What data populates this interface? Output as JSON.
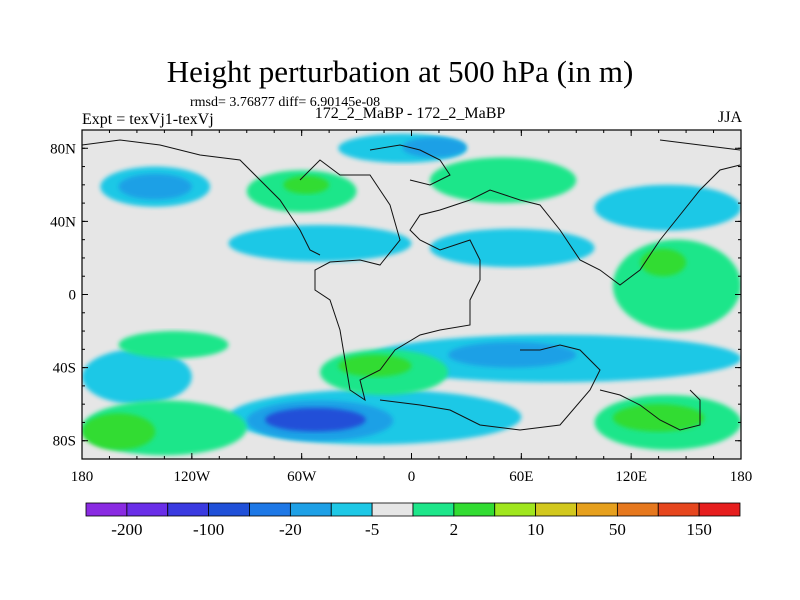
{
  "chart_data": {
    "type": "heatmap",
    "title": "Height perturbation at 500 hPa (in m)",
    "stats_text": "rmsd= 3.76877 diff= 6.90145e-08",
    "left_label": "Expt = texVj1-texVj",
    "center_label": "172_2_MaBP - 172_2_MaBP",
    "right_label": "JJA",
    "xlim": [
      -180,
      180
    ],
    "ylim": [
      -90,
      90
    ],
    "x_ticks": [
      {
        "value": -180,
        "label": "180"
      },
      {
        "value": -120,
        "label": "120W"
      },
      {
        "value": -60,
        "label": "60W"
      },
      {
        "value": 0,
        "label": "0"
      },
      {
        "value": 60,
        "label": "60E"
      },
      {
        "value": 120,
        "label": "120E"
      },
      {
        "value": 180,
        "label": "180"
      }
    ],
    "y_ticks": [
      {
        "value": 80,
        "label": "80N"
      },
      {
        "value": 40,
        "label": "40N"
      },
      {
        "value": 0,
        "label": "0"
      },
      {
        "value": -40,
        "label": "40S"
      },
      {
        "value": -80,
        "label": "80S"
      }
    ],
    "colorbar": {
      "colors": [
        "#8a2be2",
        "#6a2ee8",
        "#3a3ae0",
        "#2050d8",
        "#1e78e6",
        "#1ea0e6",
        "#1ec8e6",
        "#e6e6e6",
        "#1ee68a",
        "#32dc32",
        "#a0e61e",
        "#d2c81e",
        "#e6a01e",
        "#e6781e",
        "#e6461e",
        "#e61e1e"
      ],
      "labels": [
        {
          "after_box": 1,
          "text": "-200"
        },
        {
          "after_box": 3,
          "text": "-100"
        },
        {
          "after_box": 5,
          "text": "-20"
        },
        {
          "after_box": 7,
          "text": "-5"
        },
        {
          "after_box": 9,
          "text": "2"
        },
        {
          "after_box": 11,
          "text": "10"
        },
        {
          "after_box": 13,
          "text": "50"
        },
        {
          "after_box": 15,
          "text": "150"
        }
      ]
    },
    "field_bands": [
      {
        "level": "-5 to -2",
        "color": "#1ec8e6",
        "lon": [
          -170,
          -110
        ],
        "lat": [
          48,
          70
        ]
      },
      {
        "level": "-20 to -5",
        "color": "#1ea0e6",
        "lon": [
          -160,
          -120
        ],
        "lat": [
          52,
          66
        ]
      },
      {
        "level": "-5 to -2",
        "color": "#1ec8e6",
        "lon": [
          -40,
          30
        ],
        "lat": [
          72,
          88
        ]
      },
      {
        "level": "-20 to -5",
        "color": "#1ea0e6",
        "lon": [
          -5,
          30
        ],
        "lat": [
          75,
          86
        ]
      },
      {
        "level": "2 to 5",
        "color": "#1ee68a",
        "lon": [
          -90,
          -30
        ],
        "lat": [
          45,
          68
        ]
      },
      {
        "level": "5 to 10",
        "color": "#32dc32",
        "lon": [
          -70,
          -45
        ],
        "lat": [
          55,
          65
        ]
      },
      {
        "level": "2 to 5",
        "color": "#1ee68a",
        "lon": [
          10,
          90
        ],
        "lat": [
          50,
          75
        ]
      },
      {
        "level": "-5 to -2",
        "color": "#1ec8e6",
        "lon": [
          -100,
          0
        ],
        "lat": [
          18,
          38
        ]
      },
      {
        "level": "-5 to -2",
        "color": "#1ec8e6",
        "lon": [
          10,
          100
        ],
        "lat": [
          15,
          36
        ]
      },
      {
        "level": "-5 to -2",
        "color": "#1ec8e6",
        "lon": [
          -25,
          180
        ],
        "lat": [
          -48,
          -22
        ]
      },
      {
        "level": "-20 to -5",
        "color": "#1ea0e6",
        "lon": [
          20,
          90
        ],
        "lat": [
          -40,
          -26
        ]
      },
      {
        "level": "-5 to -2",
        "color": "#1ec8e6",
        "lon": [
          -180,
          -120
        ],
        "lat": [
          -60,
          -30
        ]
      },
      {
        "level": "-5 to -2",
        "color": "#1ec8e6",
        "lon": [
          -100,
          60
        ],
        "lat": [
          -82,
          -52
        ]
      },
      {
        "level": "-20 to -5",
        "color": "#1ea0e6",
        "lon": [
          -90,
          -10
        ],
        "lat": [
          -80,
          -58
        ]
      },
      {
        "level": "-100 to -20",
        "color": "#2050d8",
        "lon": [
          -80,
          -25
        ],
        "lat": [
          -75,
          -62
        ]
      },
      {
        "level": "2 to 5",
        "color": "#1ee68a",
        "lon": [
          -180,
          -90
        ],
        "lat": [
          -88,
          -58
        ]
      },
      {
        "level": "5 to 10",
        "color": "#32dc32",
        "lon": [
          -180,
          -140
        ],
        "lat": [
          -85,
          -65
        ]
      },
      {
        "level": "2 to 5",
        "color": "#1ee68a",
        "lon": [
          -50,
          20
        ],
        "lat": [
          -55,
          -30
        ]
      },
      {
        "level": "5 to 10",
        "color": "#32dc32",
        "lon": [
          -40,
          0
        ],
        "lat": [
          -45,
          -33
        ]
      },
      {
        "level": "2 to 5",
        "color": "#1ee68a",
        "lon": [
          100,
          180
        ],
        "lat": [
          -85,
          -55
        ]
      },
      {
        "level": "5 to 10",
        "color": "#32dc32",
        "lon": [
          110,
          160
        ],
        "lat": [
          -75,
          -60
        ]
      },
      {
        "level": "2 to 5",
        "color": "#1ee68a",
        "lon": [
          110,
          180
        ],
        "lat": [
          -20,
          30
        ]
      },
      {
        "level": "5 to 10",
        "color": "#32dc32",
        "lon": [
          125,
          150
        ],
        "lat": [
          10,
          25
        ]
      },
      {
        "level": "2 to 5",
        "color": "#1ee68a",
        "lon": [
          -160,
          -100
        ],
        "lat": [
          -35,
          -20
        ]
      },
      {
        "level": "-5 to -2",
        "color": "#1ec8e6",
        "lon": [
          100,
          180
        ],
        "lat": [
          35,
          60
        ]
      }
    ]
  }
}
